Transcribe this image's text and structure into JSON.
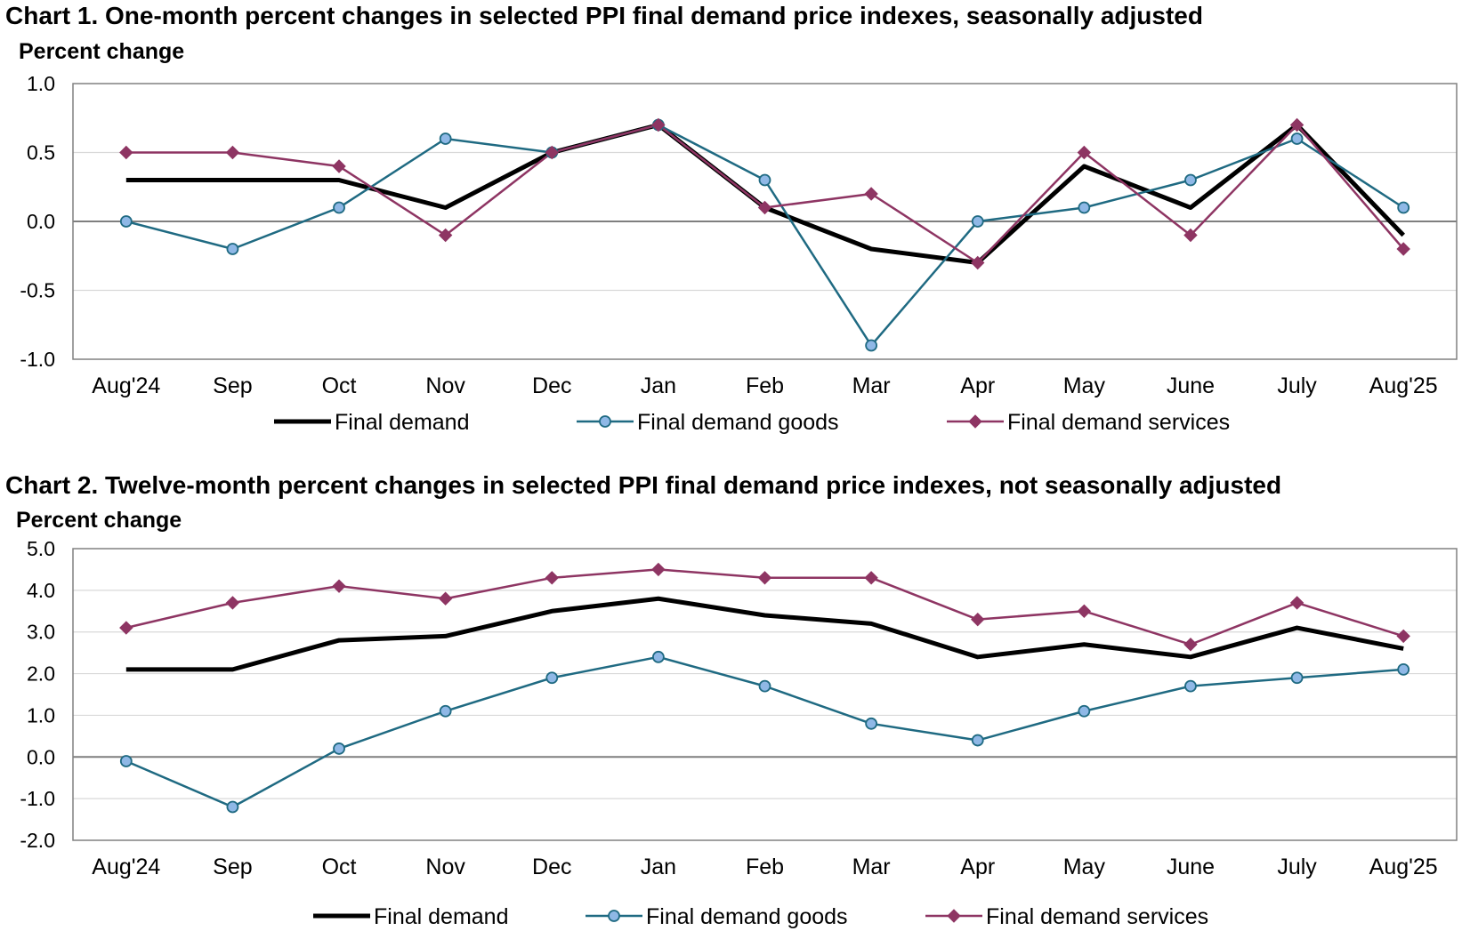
{
  "charts": [
    {
      "chart_data": {
        "type": "line",
        "title": "Chart 1. One-month percent changes in selected PPI final demand price indexes, seasonally adjusted",
        "ylabel": "Percent change",
        "xlabel": "",
        "categories": [
          "Aug'24",
          "Sep",
          "Oct",
          "Nov",
          "Dec",
          "Jan",
          "Feb",
          "Mar",
          "Apr",
          "May",
          "June",
          "July",
          "Aug'25"
        ],
        "ylim": [
          -1.0,
          1.0
        ],
        "yticks": [
          -1.0,
          -0.5,
          0.0,
          0.5,
          1.0
        ],
        "ytick_labels": [
          "-1.0",
          "-0.5",
          "0.0",
          "0.5",
          "1.0"
        ],
        "grid": true,
        "legend": "bottom",
        "series": [
          {
            "name": "Final demand",
            "color": "#000000",
            "marker": "none",
            "values": [
              0.3,
              0.3,
              0.3,
              0.1,
              0.5,
              0.7,
              0.1,
              -0.2,
              -0.3,
              0.4,
              0.1,
              0.7,
              -0.1
            ]
          },
          {
            "name": "Final demand goods",
            "color": "#1f6a82",
            "marker": "circle",
            "marker_fill": "#8fb8e6",
            "values": [
              0.0,
              -0.2,
              0.1,
              0.6,
              0.5,
              0.7,
              0.3,
              -0.9,
              0.0,
              0.1,
              0.3,
              0.6,
              0.1
            ]
          },
          {
            "name": "Final demand services",
            "color": "#8e3563",
            "marker": "diamond",
            "marker_fill": "#8e3563",
            "values": [
              0.5,
              0.5,
              0.4,
              -0.1,
              0.5,
              0.7,
              0.1,
              0.2,
              -0.3,
              0.5,
              -0.1,
              0.7,
              -0.2
            ]
          }
        ]
      }
    },
    {
      "chart_data": {
        "type": "line",
        "title": "Chart 2. Twelve-month percent changes in selected PPI final demand price indexes, not seasonally adjusted",
        "ylabel": "Percent change",
        "xlabel": "",
        "categories": [
          "Aug'24",
          "Sep",
          "Oct",
          "Nov",
          "Dec",
          "Jan",
          "Feb",
          "Mar",
          "Apr",
          "May",
          "June",
          "July",
          "Aug'25"
        ],
        "ylim": [
          -2.0,
          5.0
        ],
        "yticks": [
          -2.0,
          -1.0,
          0.0,
          1.0,
          2.0,
          3.0,
          4.0,
          5.0
        ],
        "ytick_labels": [
          "-2.0",
          "-1.0",
          "0.0",
          "1.0",
          "2.0",
          "3.0",
          "4.0",
          "5.0"
        ],
        "grid": true,
        "legend": "bottom",
        "series": [
          {
            "name": "Final demand",
            "color": "#000000",
            "marker": "none",
            "values": [
              2.1,
              2.1,
              2.8,
              2.9,
              3.5,
              3.8,
              3.4,
              3.2,
              2.4,
              2.7,
              2.4,
              3.1,
              2.6
            ]
          },
          {
            "name": "Final demand goods",
            "color": "#1f6a82",
            "marker": "circle",
            "marker_fill": "#8fb8e6",
            "values": [
              -0.1,
              -1.2,
              0.2,
              1.1,
              1.9,
              2.4,
              1.7,
              0.8,
              0.4,
              1.1,
              1.7,
              1.9,
              2.1
            ]
          },
          {
            "name": "Final demand services",
            "color": "#8e3563",
            "marker": "diamond",
            "marker_fill": "#8e3563",
            "values": [
              3.1,
              3.7,
              4.1,
              3.8,
              4.3,
              4.5,
              4.3,
              4.3,
              3.3,
              3.5,
              2.7,
              3.7,
              2.9
            ]
          }
        ]
      }
    }
  ]
}
